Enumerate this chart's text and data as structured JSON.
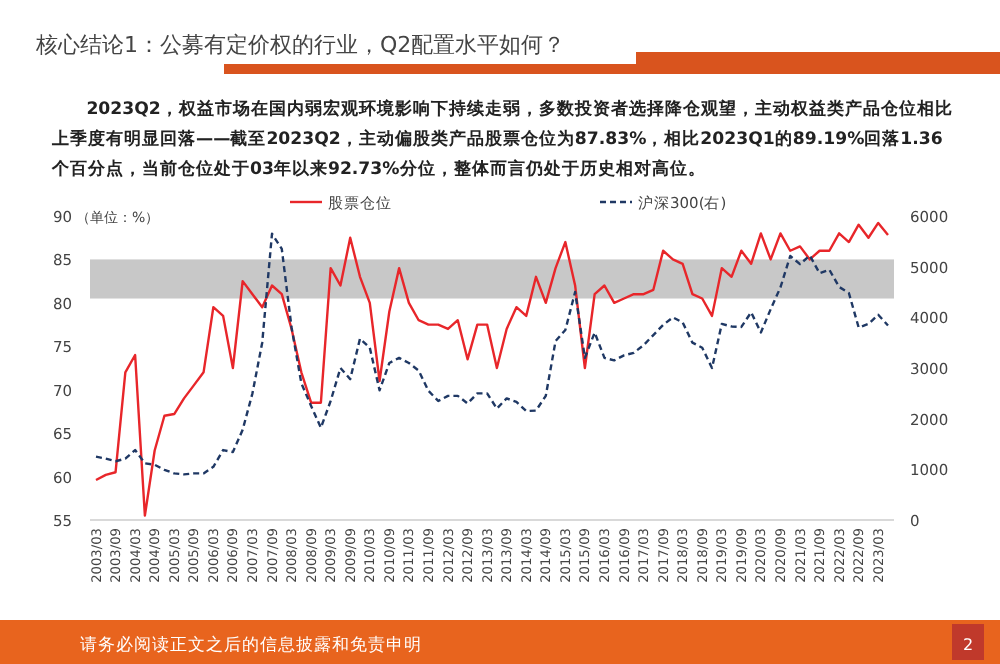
{
  "chart_data": {
    "type": "line",
    "title": "核心结论1：公募有定价权的行业，Q2配置水平如何？",
    "subtitle": "2023Q2，权益市场在国内弱宏观环境影响下持续走弱，多数投资者选择降仓观望，主动权益类产品仓位相比上季度有明显回落——截至2023Q2，主动偏股类产品股票仓位为87.83%，相比2023Q1的89.19%回落1.36个百分点，当前仓位处于03年以来92.73%分位，整体而言仍处于历史相对高位。",
    "ylabel": "（单位：%）",
    "annotations": [
      "请务必阅读正文之后的信息披露和免责申明",
      "2"
    ],
    "categories": [
      "2003/03",
      null,
      "2003/09",
      null,
      "2004/03",
      null,
      "2004/09",
      null,
      "2005/03",
      null,
      "2005/09",
      null,
      "2006/03",
      null,
      "2006/09",
      null,
      "2007/03",
      null,
      "2007/09",
      null,
      "2008/03",
      null,
      "2008/09",
      null,
      "2009/03",
      null,
      "2009/09",
      null,
      "2010/03",
      null,
      "2010/09",
      null,
      "2011/03",
      null,
      "2011/09",
      null,
      "2012/03",
      null,
      "2012/09",
      null,
      "2013/03",
      null,
      "2013/09",
      null,
      "2014/03",
      null,
      "2014/09",
      null,
      "2015/03",
      null,
      "2015/09",
      null,
      "2016/03",
      null,
      "2016/09",
      null,
      "2017/03",
      null,
      "2017/09",
      null,
      "2018/03",
      null,
      "2018/09",
      null,
      "2019/03",
      null,
      "2019/09",
      null,
      "2020/03",
      null,
      "2020/09",
      null,
      "2021/03",
      null,
      "2021/09",
      null,
      "2022/03",
      null,
      "2022/09",
      null,
      "2023/03",
      null
    ],
    "series": [
      {
        "name": "股票仓位",
        "color": "#e8262a",
        "line_style": "solid",
        "values": [
          59.6,
          60.2,
          60.5,
          72,
          74,
          55.5,
          63,
          67,
          67.2,
          69,
          70.5,
          72,
          79.5,
          78.5,
          72.5,
          82.5,
          81,
          79.5,
          82,
          81,
          77,
          72,
          68.5,
          68.5,
          84,
          82,
          87.5,
          83,
          80,
          71,
          79,
          84,
          80,
          78,
          77.5,
          77.5,
          77,
          78,
          73.5,
          77.5,
          77.5,
          72.5,
          77,
          79.5,
          78.5,
          83,
          80,
          84,
          87,
          82,
          72.5,
          81,
          82,
          80,
          80.5,
          81,
          81,
          81.5,
          86,
          85,
          84.5,
          81,
          80.5,
          78.5,
          84,
          83,
          86,
          84.5,
          88,
          85,
          88,
          86,
          86.5,
          85,
          86,
          86,
          88,
          87,
          89,
          87.5,
          89.2,
          87.8
        ]
      },
      {
        "name": "沪深300(右)",
        "color": "#1f3864",
        "line_style": "dashed",
        "axis": "y2",
        "values": [
          1250,
          1210,
          1160,
          1210,
          1380,
          1120,
          1090,
          990,
          920,
          900,
          920,
          920,
          1050,
          1380,
          1340,
          1780,
          2500,
          3500,
          5650,
          5350,
          3800,
          2700,
          2250,
          1820,
          2350,
          3000,
          2780,
          3580,
          3400,
          2560,
          3100,
          3200,
          3100,
          2950,
          2550,
          2350,
          2450,
          2450,
          2300,
          2500,
          2500,
          2200,
          2400,
          2330,
          2150,
          2160,
          2450,
          3530,
          3750,
          4500,
          3200,
          3700,
          3200,
          3150,
          3250,
          3300,
          3450,
          3650,
          3850,
          4000,
          3900,
          3500,
          3400,
          3000,
          3870,
          3820,
          3810,
          4100,
          3700,
          4160,
          4590,
          5210,
          5050,
          5220,
          4870,
          4940,
          4600,
          4480,
          3800,
          3870,
          4050,
          3840
        ]
      }
    ],
    "ylim": [
      55,
      90
    ],
    "yticks": [
      55,
      60,
      65,
      70,
      75,
      80,
      85,
      90
    ],
    "y2lim": [
      0,
      6000
    ],
    "y2ticks": [
      0,
      1000,
      2000,
      3000,
      4000,
      5000,
      6000
    ],
    "bands": [
      {
        "axis": "y",
        "from": 80.5,
        "to": 85,
        "color": "#c8c8c8"
      }
    ],
    "legend": "top",
    "grid": false
  }
}
